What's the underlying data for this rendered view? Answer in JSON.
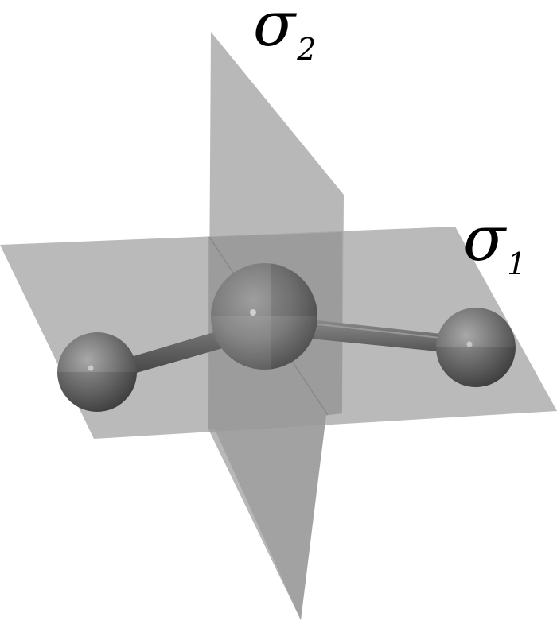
{
  "diagram": {
    "planes": {
      "sigma_1": {
        "symbol": "σ",
        "subscript": "1"
      },
      "sigma_2": {
        "symbol": "σ",
        "subscript": "2"
      }
    }
  },
  "colors": {
    "background": "#ffffff",
    "plane_fill": "#9a9a9a",
    "atom_dark": "#4a4a4a",
    "atom_light": "#8c8c8c",
    "bond": "#5a5a5a",
    "label": "#000000"
  }
}
